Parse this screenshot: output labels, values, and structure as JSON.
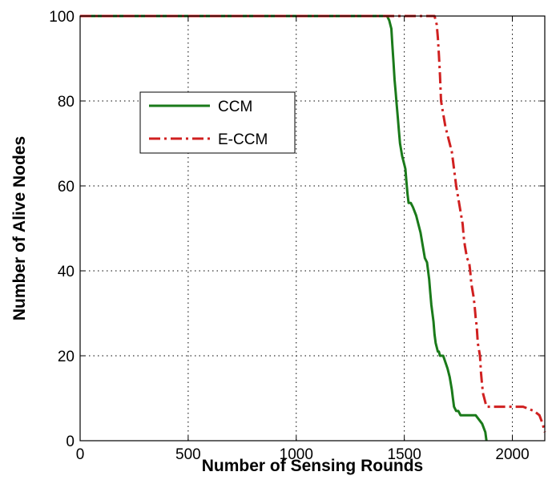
{
  "chart_data": {
    "type": "line",
    "title": "",
    "xlabel": "Number of Sensing Rounds",
    "ylabel": "Number of Alive Nodes",
    "xlim": [
      0,
      2150
    ],
    "ylim": [
      0,
      100
    ],
    "xticks": [
      0,
      500,
      1000,
      1500,
      2000
    ],
    "yticks": [
      0,
      20,
      40,
      60,
      80,
      100
    ],
    "xtick_labels": [
      "0",
      "500",
      "1000",
      "1500",
      "2000"
    ],
    "ytick_labels": [
      "0",
      "20",
      "40",
      "60",
      "80",
      "100"
    ],
    "grid": true,
    "legend_position": "upper-left",
    "series": [
      {
        "name": "CCM",
        "color": "#1a7a1a",
        "style": "solid",
        "x": [
          0,
          1420,
          1430,
          1440,
          1445,
          1450,
          1455,
          1460,
          1465,
          1470,
          1475,
          1480,
          1490,
          1500,
          1505,
          1510,
          1515,
          1520,
          1530,
          1540,
          1555,
          1565,
          1575,
          1585,
          1595,
          1605,
          1615,
          1620,
          1625,
          1635,
          1640,
          1645,
          1655,
          1660,
          1665,
          1680,
          1700,
          1710,
          1720,
          1725,
          1730,
          1740,
          1750,
          1760,
          1800,
          1830,
          1860,
          1875,
          1880
        ],
        "y": [
          100,
          100,
          99,
          97,
          93,
          89,
          85,
          82,
          79,
          76,
          73,
          70,
          67,
          65,
          64,
          61,
          58,
          56,
          56,
          55,
          53,
          51,
          49,
          46,
          43,
          42,
          38,
          35,
          32,
          28,
          25,
          23,
          21,
          21,
          20,
          20,
          17,
          15,
          12,
          10,
          8,
          7,
          7,
          6,
          6,
          6,
          4,
          2,
          0
        ]
      },
      {
        "name": "E-CCM",
        "color": "#d02020",
        "style": "dash-dot",
        "x": [
          0,
          1640,
          1650,
          1655,
          1660,
          1665,
          1670,
          1680,
          1690,
          1700,
          1710,
          1720,
          1730,
          1740,
          1750,
          1760,
          1770,
          1775,
          1780,
          1790,
          1800,
          1805,
          1810,
          1820,
          1825,
          1830,
          1835,
          1840,
          1850,
          1855,
          1860,
          1865,
          1870,
          1880,
          1900,
          1950,
          2050,
          2100,
          2125,
          2140,
          2150
        ],
        "y": [
          100,
          100,
          98,
          95,
          91,
          86,
          80,
          77,
          74,
          72,
          70,
          68,
          64,
          60,
          57,
          54,
          51,
          48,
          46,
          43,
          42,
          40,
          37,
          34,
          32,
          29,
          27,
          23,
          20,
          16,
          13,
          11,
          10,
          8,
          8,
          8,
          8,
          7,
          6,
          4,
          2
        ]
      }
    ]
  }
}
